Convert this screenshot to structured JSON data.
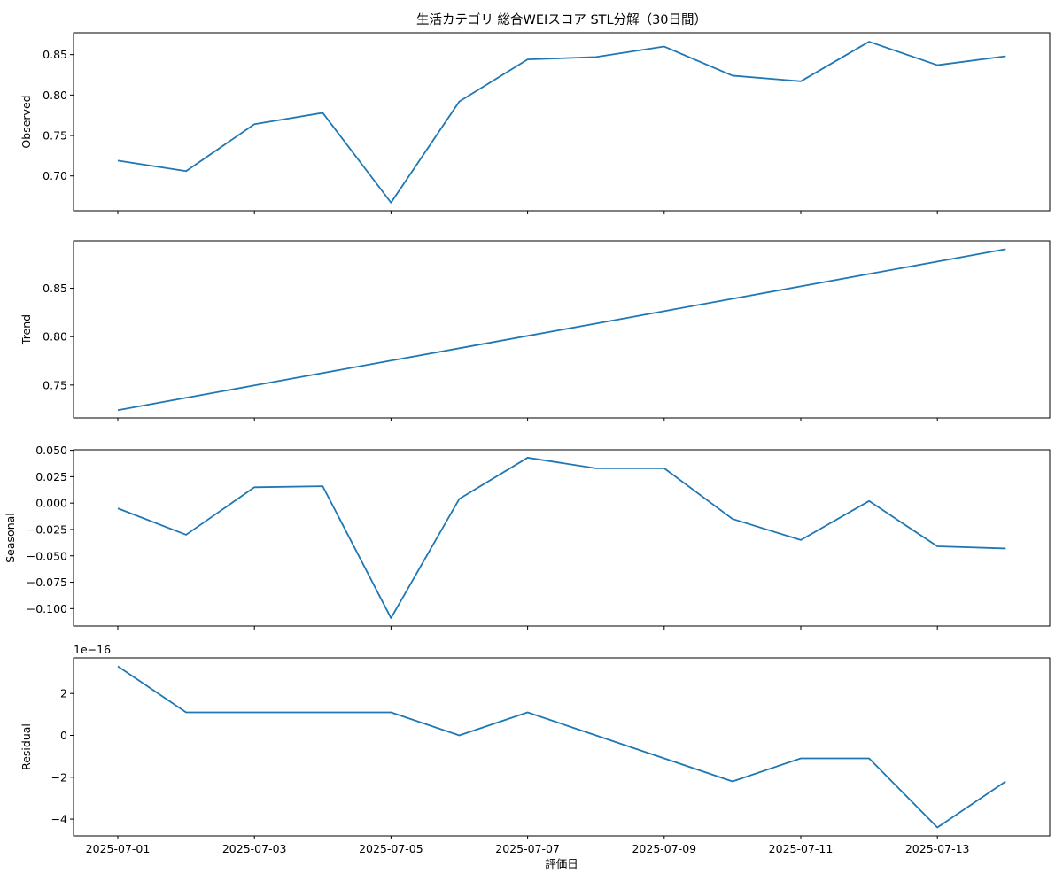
{
  "chart_data": {
    "type": "line",
    "title": "生活カテゴリ 総合WEIスコア STL分解（30日間）",
    "xlabel": "評価日",
    "x": [
      "2025-07-01",
      "2025-07-02",
      "2025-07-03",
      "2025-07-04",
      "2025-07-05",
      "2025-07-06",
      "2025-07-07",
      "2025-07-08",
      "2025-07-09",
      "2025-07-10",
      "2025-07-11",
      "2025-07-12",
      "2025-07-13",
      "2025-07-14"
    ],
    "xticks": [
      "2025-07-01",
      "2025-07-03",
      "2025-07-05",
      "2025-07-07",
      "2025-07-09",
      "2025-07-11",
      "2025-07-13"
    ],
    "line_color": "#1f77b4",
    "grid": false,
    "panels": [
      {
        "ylabel": "Observed",
        "ylim": [
          0.657,
          0.877
        ],
        "yticks": [
          0.7,
          0.75,
          0.8,
          0.85
        ],
        "tick_decimals": 2,
        "offset_label": "",
        "values": [
          0.719,
          0.706,
          0.764,
          0.778,
          0.667,
          0.792,
          0.844,
          0.847,
          0.86,
          0.824,
          0.817,
          0.866,
          0.837,
          0.848
        ]
      },
      {
        "ylabel": "Trend",
        "ylim": [
          0.716,
          0.899
        ],
        "yticks": [
          0.75,
          0.8,
          0.85
        ],
        "tick_decimals": 2,
        "offset_label": "",
        "values": [
          0.724,
          0.7368,
          0.7496,
          0.7624,
          0.7752,
          0.788,
          0.8008,
          0.8136,
          0.8264,
          0.8392,
          0.852,
          0.8648,
          0.8776,
          0.8904
        ]
      },
      {
        "ylabel": "Seasonal",
        "ylim": [
          -0.1165,
          0.0505
        ],
        "yticks": [
          -0.1,
          -0.075,
          -0.05,
          -0.025,
          0.0,
          0.025,
          0.05
        ],
        "tick_decimals": 3,
        "offset_label": "",
        "values": [
          -0.005,
          -0.03,
          0.015,
          0.016,
          -0.109,
          0.004,
          0.043,
          0.033,
          0.033,
          -0.015,
          -0.035,
          0.002,
          -0.041,
          -0.043
        ]
      },
      {
        "ylabel": "Residual",
        "ylim": [
          -4.8,
          3.7
        ],
        "yticks": [
          -4,
          -2,
          0,
          2
        ],
        "tick_decimals": 0,
        "offset_label": "1e−16",
        "values": [
          3.3,
          1.1,
          1.1,
          1.1,
          1.1,
          0.0,
          1.1,
          0.0,
          -1.1,
          -2.2,
          -1.1,
          -1.1,
          -4.4,
          -2.2
        ]
      }
    ]
  }
}
